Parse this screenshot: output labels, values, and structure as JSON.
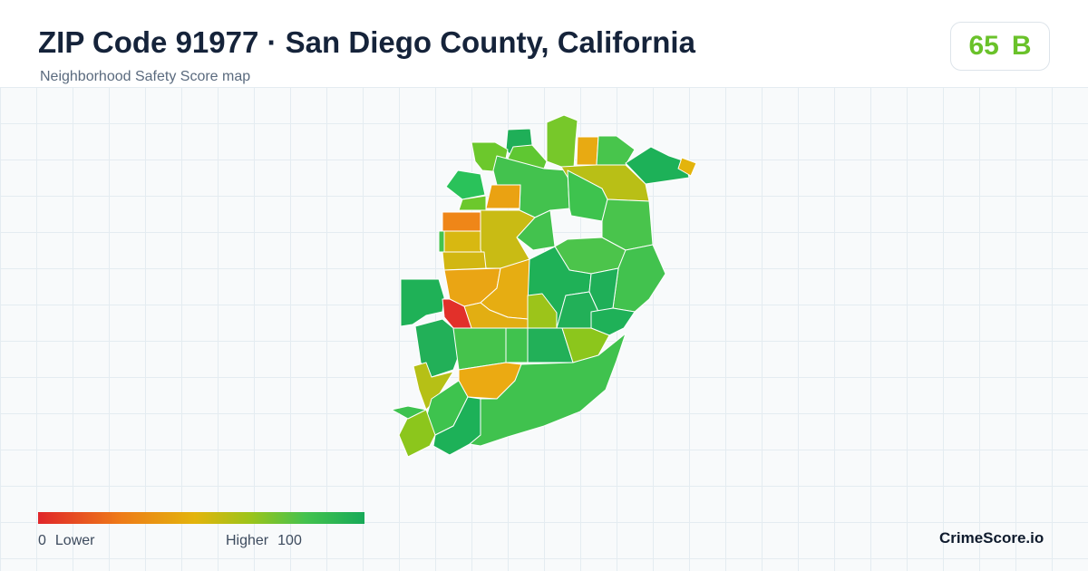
{
  "header": {
    "title": "ZIP Code 91977 · San Diego County, California",
    "subtitle": "Neighborhood Safety Score map"
  },
  "score": {
    "value": "65",
    "grade": "B",
    "color": "#6ac22a"
  },
  "legend": {
    "min_value": "0",
    "min_label": "Lower",
    "max_label": "Higher",
    "max_value": "100",
    "colors": [
      "#e0262a",
      "#ee7a18",
      "#e3b40c",
      "#9cc41a",
      "#43c24e",
      "#18aa58"
    ]
  },
  "brand": {
    "name": "CrimeScore.io"
  }
}
